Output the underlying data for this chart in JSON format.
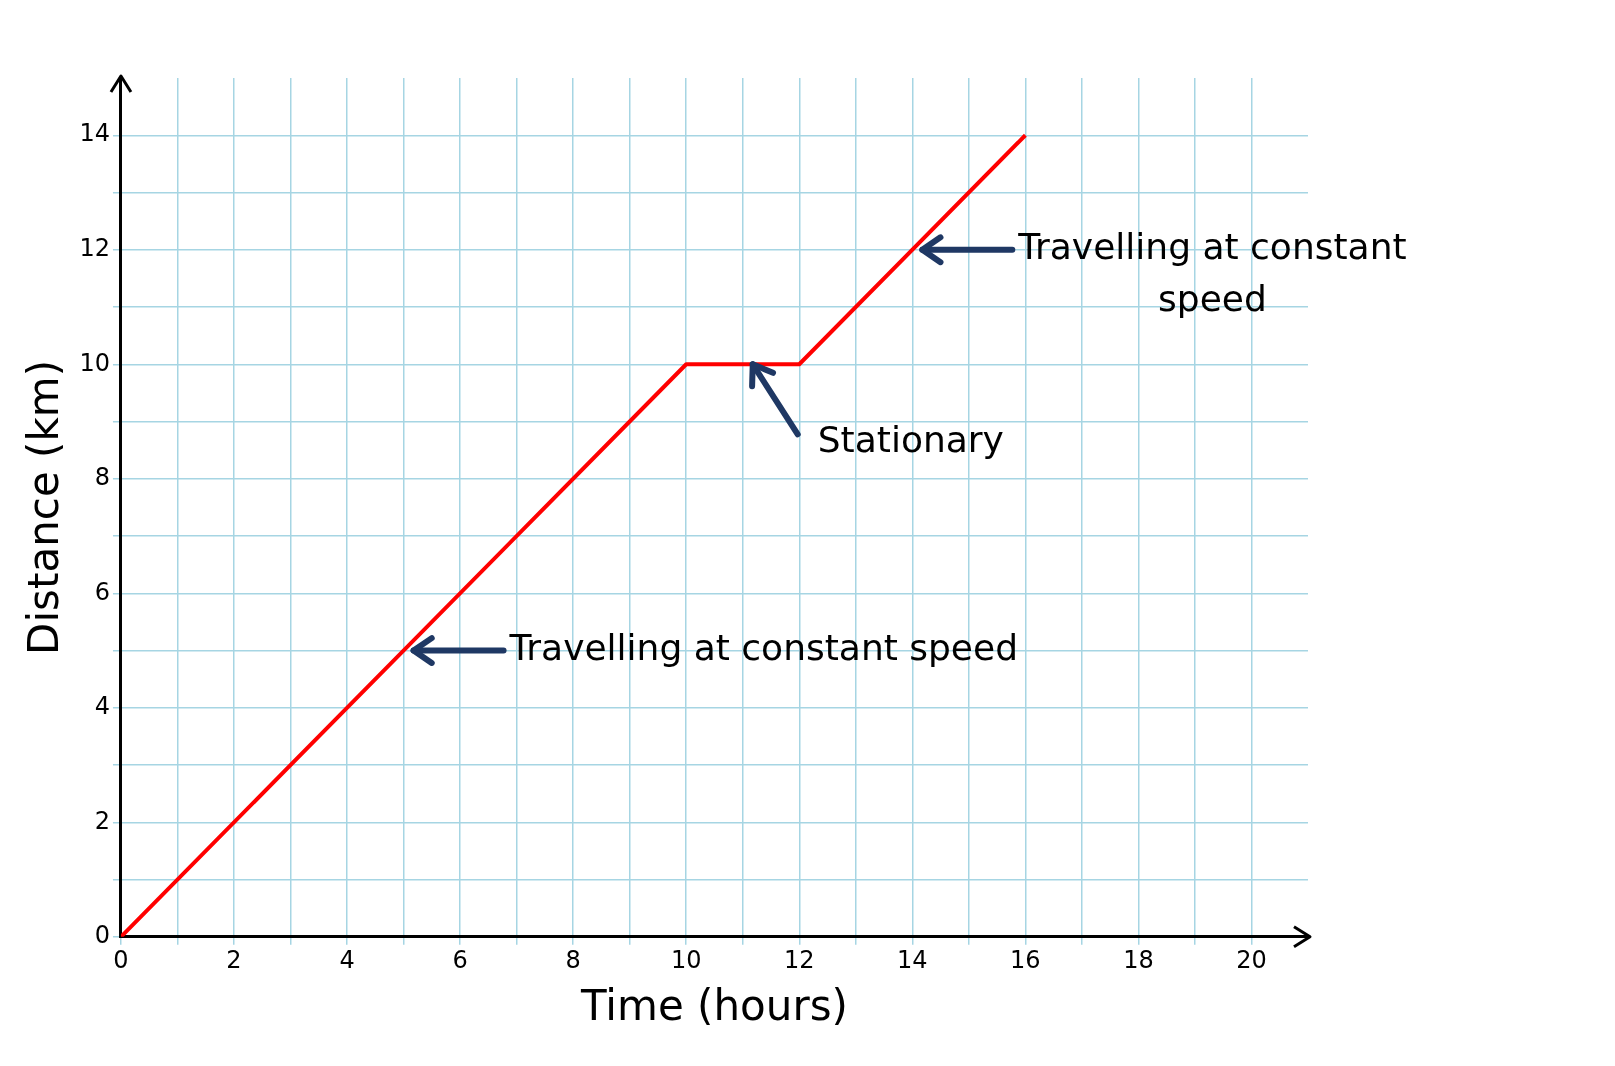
{
  "chart_data": {
    "type": "line",
    "xlabel": "Time (hours)",
    "ylabel": "Distance (km)",
    "x": [
      0,
      10,
      12,
      16
    ],
    "series": [
      {
        "color": "#ff0000",
        "values": [
          0,
          10,
          10,
          14
        ]
      }
    ],
    "xlim": [
      0,
      21
    ],
    "ylim": [
      0,
      15
    ],
    "xticks": [
      0,
      {
        "value": 1,
        "label": null
      },
      2,
      {
        "value": 3,
        "label": null
      },
      4,
      {
        "value": 5,
        "label": null
      },
      6,
      {
        "value": 7,
        "label": null
      },
      8,
      {
        "value": 9,
        "label": null
      },
      10,
      {
        "value": 11,
        "label": null
      },
      12,
      {
        "value": 13,
        "label": null
      },
      14,
      {
        "value": 15,
        "label": null
      },
      16,
      {
        "value": 17,
        "label": null
      },
      18,
      {
        "value": 19,
        "label": null
      },
      20
    ],
    "yticks": [
      0,
      {
        "value": 1,
        "label": null
      },
      2,
      {
        "value": 3,
        "label": null
      },
      4,
      {
        "value": 5,
        "label": null
      },
      6,
      {
        "value": 7,
        "label": null
      },
      8,
      {
        "value": 9,
        "label": null
      },
      10,
      {
        "value": 11,
        "label": null
      },
      12,
      {
        "value": 13,
        "label": null
      },
      14
    ],
    "grid": true,
    "legend": false,
    "marker": "none",
    "line_style": "solid",
    "annotations": [
      {
        "text": "Travelling at constant speed",
        "x": 5,
        "y": 5
      },
      {
        "text": "Stationary",
        "x": 11,
        "y": 10
      },
      {
        "text": "Travelling at constant speed",
        "x": 14,
        "y": 12
      }
    ]
  }
}
